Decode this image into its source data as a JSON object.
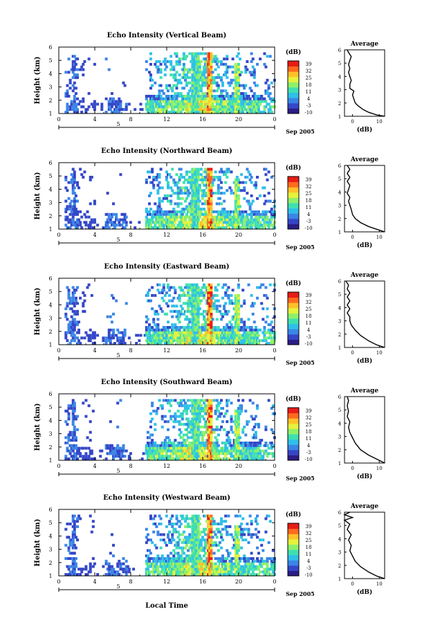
{
  "chart_data": {
    "type": "heatmap",
    "figure_x_label": "Local Time",
    "date_label": "Sep 2005",
    "day_label": "5",
    "x_ticks": [
      "0",
      "4",
      "8",
      "12",
      "16",
      "20",
      "0"
    ],
    "y_ticks": [
      "1",
      "2",
      "3",
      "4",
      "5",
      "6"
    ],
    "ylabel": "Height (km)",
    "xlim_hours": [
      0,
      24
    ],
    "ylim_km": [
      1,
      6
    ],
    "colorbar": {
      "label": "(dB)",
      "ticks": [
        "39",
        "32",
        "25",
        "18",
        "11",
        "4",
        "-3",
        "-10"
      ],
      "range_db": [
        -10,
        39
      ],
      "colors": [
        "#2b1d87",
        "#3547c8",
        "#3a86e6",
        "#2fc0e8",
        "#3fe0b0",
        "#8ef06a",
        "#e6f23c",
        "#ffc02a",
        "#ff6a1e",
        "#e81c16"
      ]
    },
    "average_panel": {
      "title": "Average",
      "xlabel": "(dB)",
      "x_ticks": [
        "0",
        "10"
      ],
      "y_ticks": [
        "1",
        "2",
        "3",
        "4",
        "5",
        "6"
      ]
    },
    "panels": [
      {
        "title": "Echo Intensity (Vertical Beam)",
        "profile": [
          [
            12,
            1.0
          ],
          [
            9,
            1.1
          ],
          [
            6,
            1.3
          ],
          [
            4,
            1.5
          ],
          [
            2,
            1.8
          ],
          [
            1,
            2.0
          ],
          [
            0.5,
            2.3
          ],
          [
            0,
            2.6
          ],
          [
            0.5,
            2.9
          ],
          [
            -1,
            3.1
          ],
          [
            -1,
            3.4
          ],
          [
            -0.5,
            3.7
          ],
          [
            -1,
            4.0
          ],
          [
            -1.5,
            4.3
          ],
          [
            -1,
            4.6
          ],
          [
            -1.5,
            4.9
          ],
          [
            -1,
            5.2
          ],
          [
            -0.5,
            5.5
          ],
          [
            -1.5,
            5.8
          ],
          [
            -2,
            6.0
          ]
        ],
        "avg_xlim": [
          -3,
          12
        ]
      },
      {
        "title": "Echo Intensity (Northward Beam)",
        "profile": [
          [
            12,
            1.0
          ],
          [
            9,
            1.2
          ],
          [
            6,
            1.4
          ],
          [
            3,
            1.7
          ],
          [
            1,
            2.0
          ],
          [
            0,
            2.3
          ],
          [
            -0.5,
            2.7
          ],
          [
            -1,
            3.0
          ],
          [
            -1.5,
            3.3
          ],
          [
            -1,
            3.6
          ],
          [
            -2,
            3.9
          ],
          [
            -1.5,
            4.2
          ],
          [
            -1,
            4.5
          ],
          [
            -2,
            4.8
          ],
          [
            -1,
            5.1
          ],
          [
            -2,
            5.4
          ],
          [
            -1,
            5.7
          ],
          [
            -2,
            6.0
          ]
        ],
        "avg_xlim": [
          -3,
          12
        ]
      },
      {
        "title": "Echo Intensity (Eastward Beam)",
        "profile": [
          [
            12,
            1.0
          ],
          [
            9,
            1.2
          ],
          [
            6,
            1.5
          ],
          [
            3,
            1.9
          ],
          [
            1,
            2.3
          ],
          [
            -0.5,
            2.7
          ],
          [
            -1,
            3.0
          ],
          [
            -1,
            3.3
          ],
          [
            -2,
            3.6
          ],
          [
            -1,
            3.9
          ],
          [
            -2,
            4.2
          ],
          [
            -1,
            4.5
          ],
          [
            -2,
            4.8
          ],
          [
            -1,
            5.1
          ],
          [
            -2,
            5.4
          ],
          [
            -1.5,
            5.7
          ],
          [
            -2.5,
            6.0
          ]
        ],
        "avg_xlim": [
          -3,
          12
        ]
      },
      {
        "title": "Echo Intensity (Southward Beam)",
        "profile": [
          [
            12,
            1.0
          ],
          [
            9,
            1.3
          ],
          [
            6,
            1.6
          ],
          [
            3,
            2.0
          ],
          [
            1,
            2.5
          ],
          [
            0,
            2.9
          ],
          [
            -1,
            3.3
          ],
          [
            -1.5,
            3.7
          ],
          [
            -1,
            4.1
          ],
          [
            -2,
            4.5
          ],
          [
            -1.5,
            4.9
          ],
          [
            -2,
            5.3
          ],
          [
            -1.5,
            5.7
          ],
          [
            -2,
            6.0
          ]
        ],
        "avg_xlim": [
          -3,
          12
        ]
      },
      {
        "title": "Echo Intensity (Westward Beam)",
        "profile": [
          [
            12,
            1.0
          ],
          [
            9,
            1.2
          ],
          [
            6,
            1.5
          ],
          [
            3,
            1.9
          ],
          [
            1,
            2.3
          ],
          [
            0,
            2.7
          ],
          [
            -1,
            3.1
          ],
          [
            -0.5,
            3.5
          ],
          [
            -1.5,
            3.9
          ],
          [
            -0.5,
            4.3
          ],
          [
            -2,
            4.7
          ],
          [
            -1,
            5.1
          ],
          [
            -3,
            5.4
          ],
          [
            0,
            5.6
          ],
          [
            -3,
            5.8
          ],
          [
            -1,
            6.0
          ]
        ],
        "avg_xlim": [
          -3,
          12
        ]
      }
    ]
  }
}
